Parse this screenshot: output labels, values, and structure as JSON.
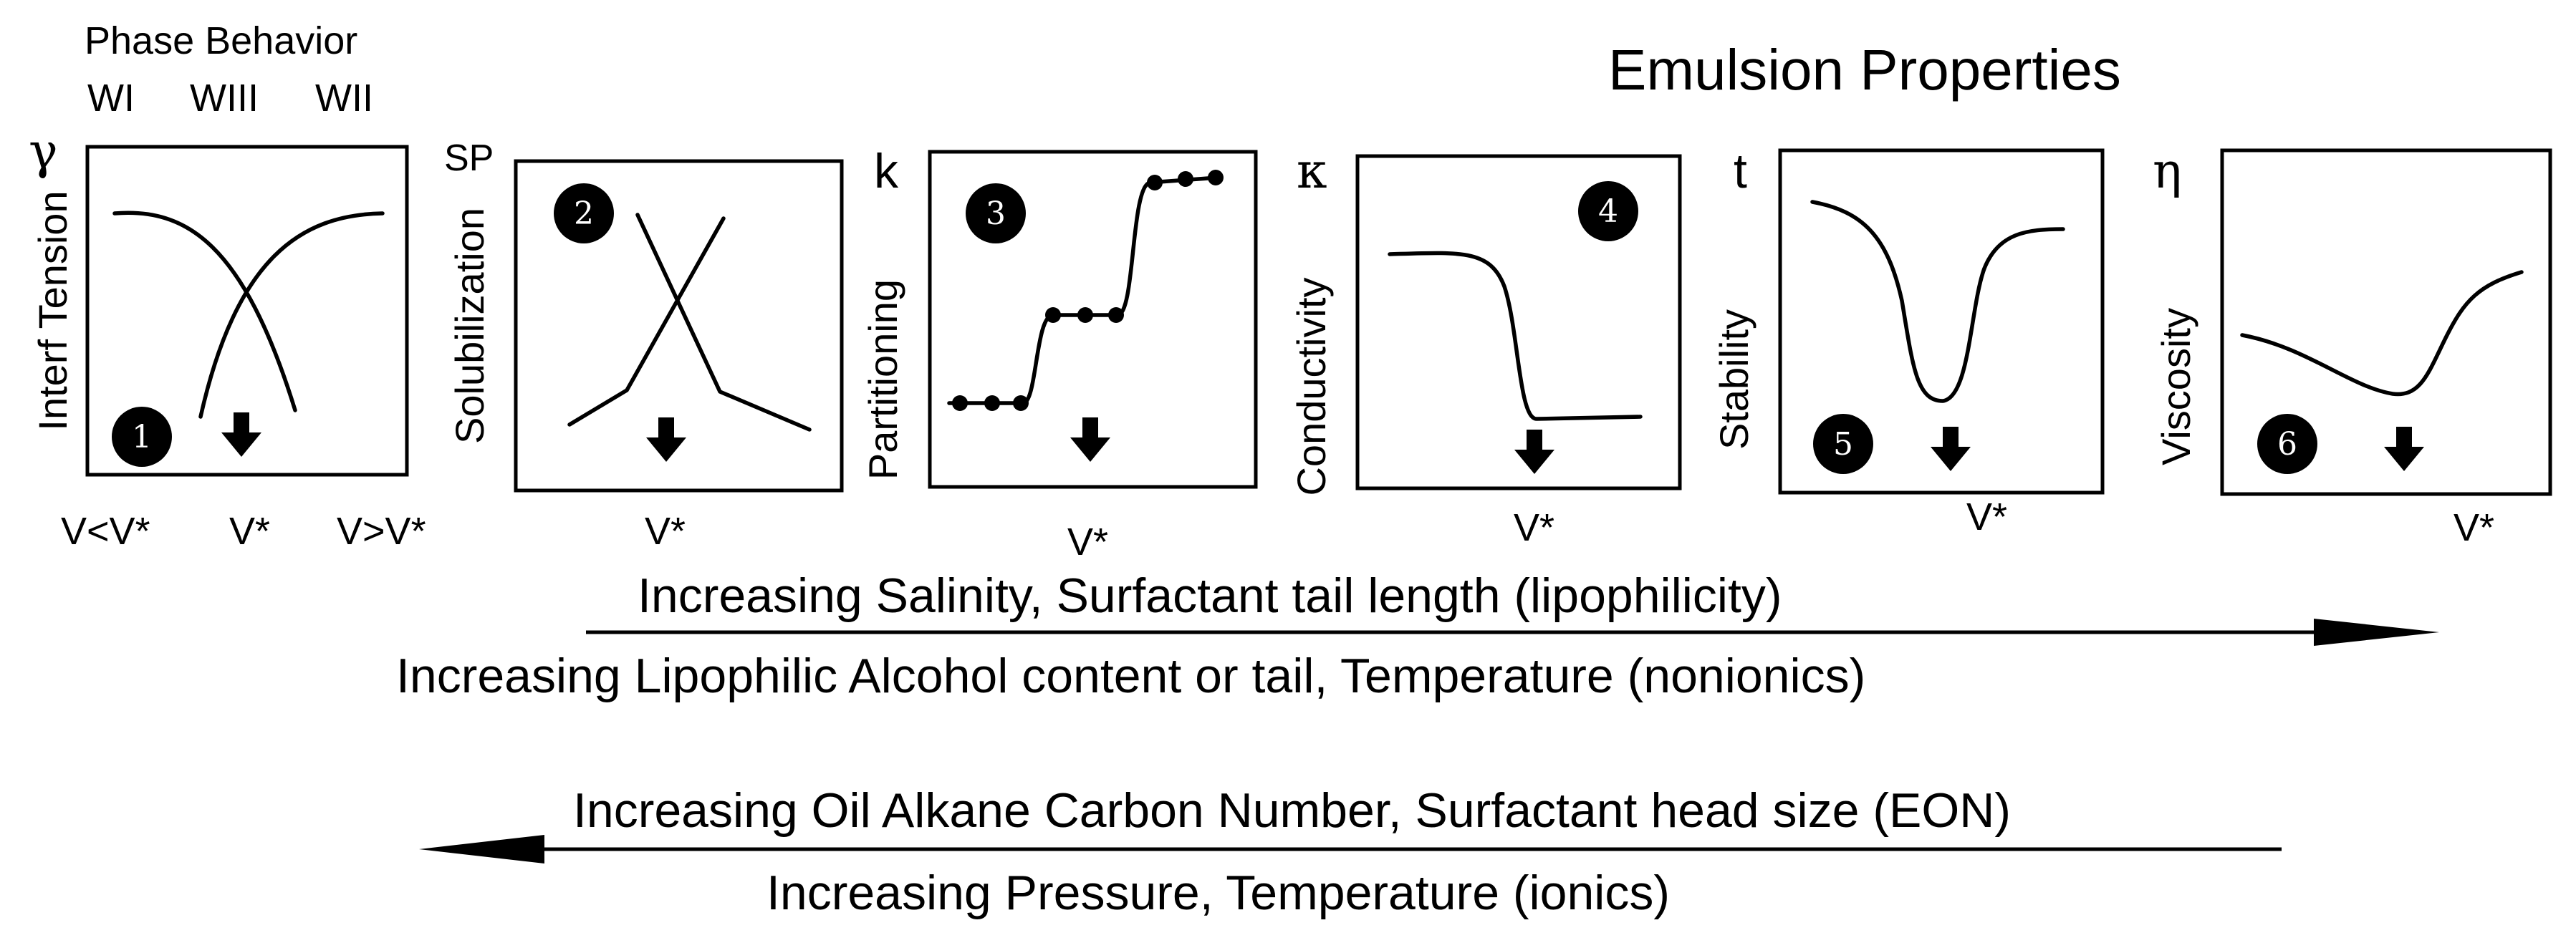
{
  "header": {
    "phase_behavior": "Phase Behavior",
    "phase_labels": [
      "WI",
      "WIII",
      "WII"
    ],
    "emulsion_properties": "Emulsion Properties"
  },
  "panels": [
    {
      "number": "1",
      "symbol": "γ",
      "ylabel": "Interf Tension",
      "xlabels": [
        "V<V*",
        "V*",
        "V>V*"
      ]
    },
    {
      "number": "2",
      "symbol": "SP",
      "ylabel": "Solubilization",
      "xlabels": [
        "V*"
      ]
    },
    {
      "number": "3",
      "symbol": "k",
      "ylabel": "Partitioning",
      "xlabels": [
        "V*"
      ]
    },
    {
      "number": "4",
      "symbol": "κ",
      "ylabel": "Conductivity",
      "xlabels": [
        "V*"
      ]
    },
    {
      "number": "5",
      "symbol": "t",
      "ylabel": "Stability",
      "xlabels": [
        "V*"
      ]
    },
    {
      "number": "6",
      "symbol": "η",
      "ylabel": "Viscosity",
      "xlabels": [
        "V*"
      ]
    }
  ],
  "arrows": {
    "right_top": "Increasing Salinity, Surfactant tail length (lipophilicity)",
    "right_bottom": "Increasing Lipophilic Alcohol content or tail, Temperature (nonionics)",
    "left_top": "Increasing Oil Alkane Carbon Number, Surfactant head size (EON)",
    "left_bottom": "Increasing Pressure, Temperature (ionics)"
  }
}
